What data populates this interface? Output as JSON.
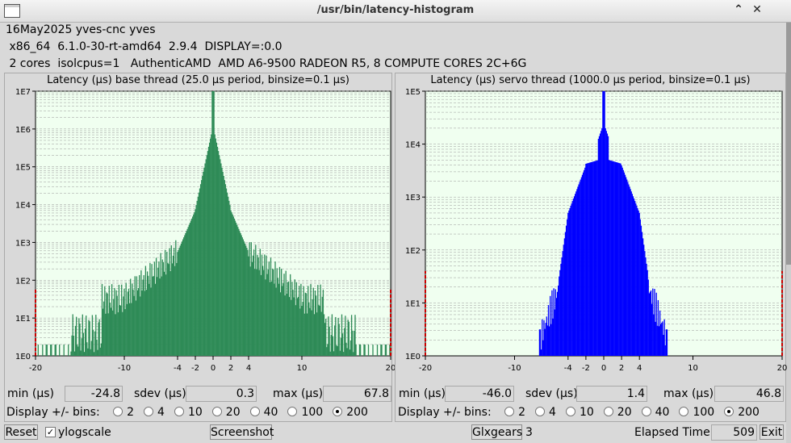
{
  "window": {
    "title": "/usr/bin/latency-histogram",
    "minimize": "⌃",
    "close": "✕"
  },
  "info": {
    "line1": "16May2025 yves-cnc yves",
    "line2": " x86_64  6.1.0-30-rt-amd64  2.9.4  DISPLAY=:0.0",
    "line3": " 2 cores  isolcpus=1   AuthenticAMD  AMD A6-9500 RADEON R5, 8 COMPUTE CORES 2C+6G"
  },
  "colors": {
    "base": "#2e8b57",
    "servo": "#0000ff",
    "plot_bg": "#f0fff0",
    "limit": "#cc0000"
  },
  "base": {
    "title": "Latency (µs) base thread (25.0 µs period, binsize=0.1 µs)",
    "min_label": "min (µs)",
    "min": "-24.8",
    "sdev_label": "sdev (µs)",
    "sdev": "0.3",
    "max_label": "max (µs)",
    "max": "67.8",
    "bins_label": "Display +/- bins:",
    "bins": [
      "2",
      "4",
      "10",
      "20",
      "40",
      "100",
      "200"
    ],
    "selected": "200"
  },
  "servo": {
    "title": "Latency (µs) servo thread (1000.0 µs period, binsize=0.1 µs)",
    "min_label": "min (µs)",
    "min": "-46.0",
    "sdev_label": "sdev (µs)",
    "sdev": "1.4",
    "max_label": "max (µs)",
    "max": "46.8",
    "bins_label": "Display +/- bins:",
    "bins": [
      "2",
      "4",
      "10",
      "20",
      "40",
      "100",
      "200"
    ],
    "selected": "200"
  },
  "bottom": {
    "reset": "Reset",
    "ylog": "ylogscale",
    "ylog_checked": "✓",
    "screenshot": "Screenshot",
    "glxgears": "Glxgears",
    "glx_count": "3",
    "elapsed_label": "Elapsed Time:",
    "elapsed": "509",
    "exit": "Exit"
  },
  "chart_data": [
    {
      "type": "bar",
      "title": "Latency (µs) base thread (25.0 µs period, binsize=0.1 µs)",
      "xlabel": "",
      "ylabel": "",
      "xlim": [
        -20,
        20
      ],
      "x_ticks": [
        "-20",
        "-10",
        "-4",
        "-2",
        "0",
        "2",
        "4",
        "10",
        "20"
      ],
      "y_scale": "log",
      "ylim": [
        1,
        10000000
      ],
      "y_ticks": [
        "1E0",
        "1E1",
        "1E2",
        "1E3",
        "1E4",
        "1E5",
        "1E6",
        "1E7"
      ],
      "grid": true,
      "profile": {
        "peak_x": 0.0,
        "peak_count": 10000000,
        "shoulder_count": 1200000,
        "edge_count_left": 60,
        "edge_count_right": 60
      }
    },
    {
      "type": "bar",
      "title": "Latency (µs) servo thread (1000.0 µs period, binsize=0.1 µs)",
      "xlabel": "",
      "ylabel": "",
      "xlim": [
        -20,
        20
      ],
      "x_ticks": [
        "-20",
        "-10",
        "-4",
        "-2",
        "0",
        "2",
        "4",
        "10",
        "20"
      ],
      "y_scale": "log",
      "ylim": [
        1,
        100000
      ],
      "y_ticks": [
        "1E0",
        "1E1",
        "1E2",
        "1E3",
        "1E4",
        "1E5"
      ],
      "grid": true,
      "profile": {
        "peak_x": 0.0,
        "peak_count": 100000,
        "plateau_count": 5000,
        "edge_count_left": 40,
        "edge_count_right": 40
      }
    }
  ]
}
